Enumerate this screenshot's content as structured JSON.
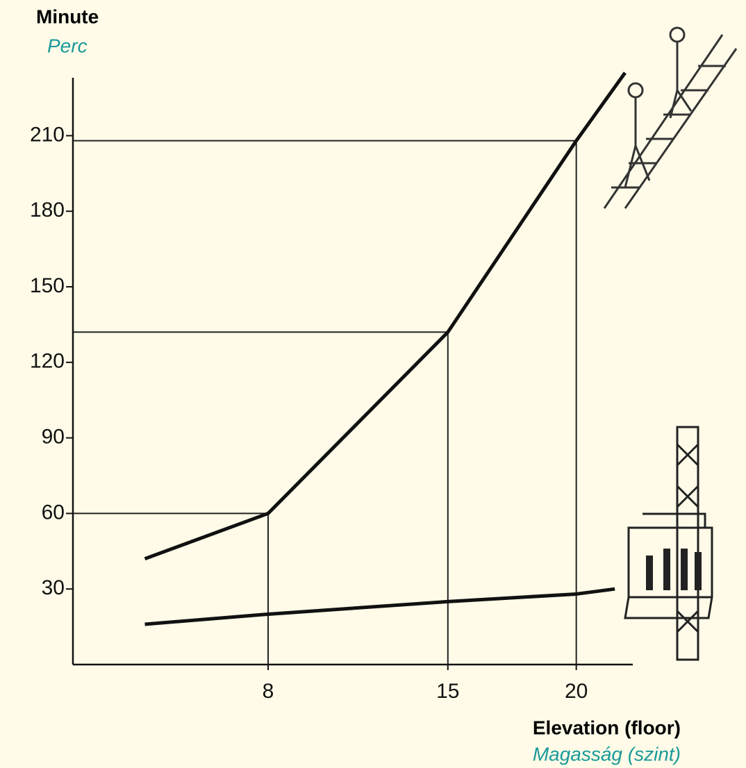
{
  "chart_data": {
    "type": "line",
    "y_title": "Minute",
    "y_title_hu": "Perc",
    "x_title": "Elevation (floor)",
    "x_title_hu": "Magasság (szint)",
    "xlim": [
      0.4,
      22.2
    ],
    "ylim": [
      0,
      233
    ],
    "xticks": [
      8,
      15,
      20
    ],
    "yticks": [
      30,
      60,
      90,
      120,
      150,
      180,
      210
    ],
    "guides": true,
    "series": [
      {
        "color": "#111111",
        "x": [
          3.2,
          8,
          15,
          20,
          21.9
        ],
        "values": [
          42,
          60,
          132,
          208,
          235
        ]
      },
      {
        "color": "#111111",
        "x": [
          3.2,
          8,
          15,
          20,
          21.5
        ],
        "values": [
          16,
          20,
          25,
          28,
          30
        ]
      }
    ]
  }
}
